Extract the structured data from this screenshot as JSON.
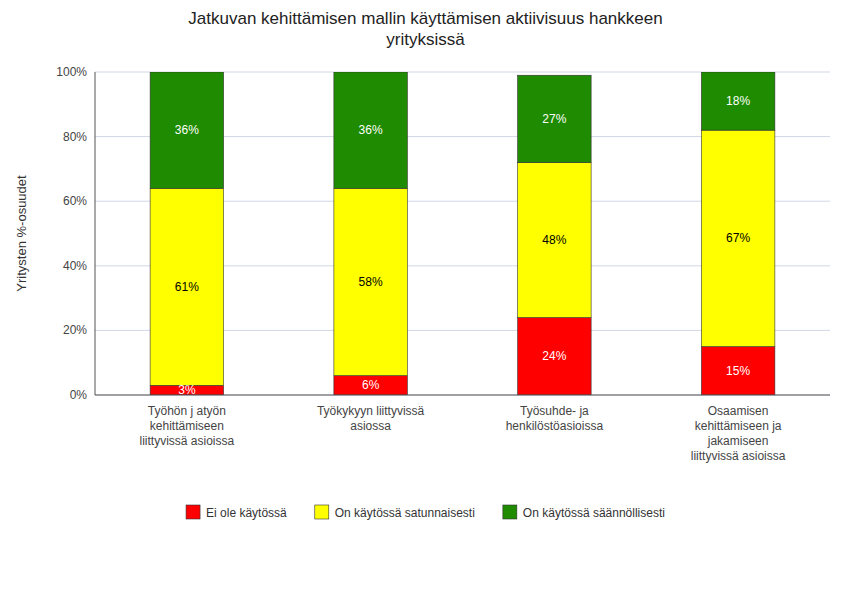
{
  "chart_data": {
    "type": "bar",
    "stacked": true,
    "title": "Jatkuvan kehittämisen mallin käyttämisen aktiivisuus hankkeen\nyrityksissä",
    "ylabel": "Yritysten %-osuudet",
    "categories": [
      "Työhön j atyön\nkehittämiseen\nliittyvissä asioissa",
      "Työkykyyn liittyvissä\nasiossa",
      "Työsuhde- ja\nhenkilöstöasioissa",
      "Osaamisen\nkehittämiseen ja\njakamiseen\nliittyvissä asioissa"
    ],
    "series": [
      {
        "name": "Ei ole käytössä",
        "color": "#FF0000",
        "values": [
          3,
          6,
          24,
          15
        ],
        "value_labels": [
          "3%",
          "6%",
          "24%",
          "15%"
        ]
      },
      {
        "name": "On käytössä satunnaisesti",
        "color": "#FFFF00",
        "values": [
          61,
          58,
          48,
          67
        ],
        "value_labels": [
          "61%",
          "58%",
          "48%",
          "67%"
        ]
      },
      {
        "name": "On käytössä säännöllisesti",
        "color": "#1E8B00",
        "values": [
          36,
          36,
          27,
          18
        ],
        "value_labels": [
          "36%",
          "36%",
          "27%",
          "18%"
        ]
      }
    ],
    "ylim": [
      0,
      100
    ],
    "yticks": [
      {
        "value": 0,
        "label": "0%"
      },
      {
        "value": 20,
        "label": "20%"
      },
      {
        "value": 40,
        "label": "40%"
      },
      {
        "value": 60,
        "label": "60%"
      },
      {
        "value": 80,
        "label": "80%"
      },
      {
        "value": 100,
        "label": "100%"
      }
    ],
    "grid": true,
    "data_labels": true,
    "legend": "bottom"
  }
}
